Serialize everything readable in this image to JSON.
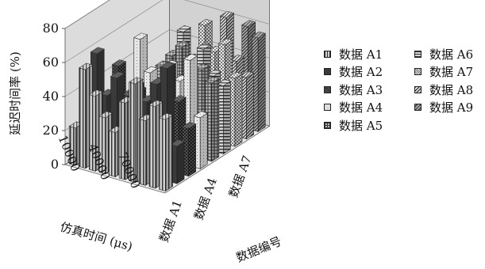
{
  "chart_data": {
    "type": "bar",
    "variant": "3d-column",
    "title": "",
    "zlabel": "延迟时间率 (%)",
    "zlim": [
      0,
      80
    ],
    "zticks": [
      "0",
      "20",
      "40",
      "60",
      "80"
    ],
    "xlabel": "仿真时间 (μs)",
    "xticks": [
      "10000",
      "40000",
      "70000"
    ],
    "ylabel": "数据编号",
    "yticks": [
      "数据 A1",
      "数据 A4",
      "数据 A7"
    ],
    "grid": true,
    "legend_position": "right",
    "x": [
      10000,
      20000,
      30000,
      40000,
      50000,
      60000,
      70000,
      80000,
      90000,
      100000
    ],
    "series": [
      {
        "name": "数据 A1",
        "values": [
          22,
          58,
          44,
          33,
          26,
          45,
          58,
          38,
          48,
          42
        ]
      },
      {
        "name": "数据 A2",
        "values": [
          0,
          63,
          40,
          52,
          36,
          50,
          43,
          55,
          66,
          22
        ]
      },
      {
        "name": "数据 A3",
        "values": [
          0,
          0,
          53,
          37,
          41,
          30,
          35,
          60,
          42,
          28
        ]
      },
      {
        "name": "数据 A4",
        "values": [
          0,
          0,
          0,
          66,
          48,
          40,
          55,
          48,
          62,
          30
        ]
      },
      {
        "name": "数据 A5",
        "values": [
          0,
          0,
          0,
          0,
          47,
          55,
          62,
          46,
          52,
          46
        ]
      },
      {
        "name": "数据 A6",
        "values": [
          0,
          0,
          0,
          0,
          0,
          65,
          50,
          58,
          44,
          40
        ]
      },
      {
        "name": "数据 A7",
        "values": [
          0,
          0,
          0,
          0,
          0,
          0,
          66,
          52,
          58,
          40
        ]
      },
      {
        "name": "数据 A8",
        "values": [
          0,
          0,
          0,
          0,
          0,
          0,
          0,
          68,
          44,
          36
        ]
      },
      {
        "name": "数据 A9",
        "values": [
          0,
          0,
          0,
          0,
          0,
          0,
          0,
          0,
          60,
          55
        ]
      }
    ]
  },
  "legend": {
    "items": [
      {
        "label": "数据 A1",
        "pattern": "vertical"
      },
      {
        "label": "数据 A2",
        "pattern": "solid"
      },
      {
        "label": "数据 A3",
        "pattern": "dense-dark"
      },
      {
        "label": "数据 A4",
        "pattern": "light"
      },
      {
        "label": "数据 A5",
        "pattern": "cross"
      },
      {
        "label": "数据 A6",
        "pattern": "horizontal"
      },
      {
        "label": "数据 A7",
        "pattern": "checker"
      },
      {
        "label": "数据 A8",
        "pattern": "diagonal"
      },
      {
        "label": "数据 A9",
        "pattern": "dark-diagonal"
      }
    ]
  }
}
